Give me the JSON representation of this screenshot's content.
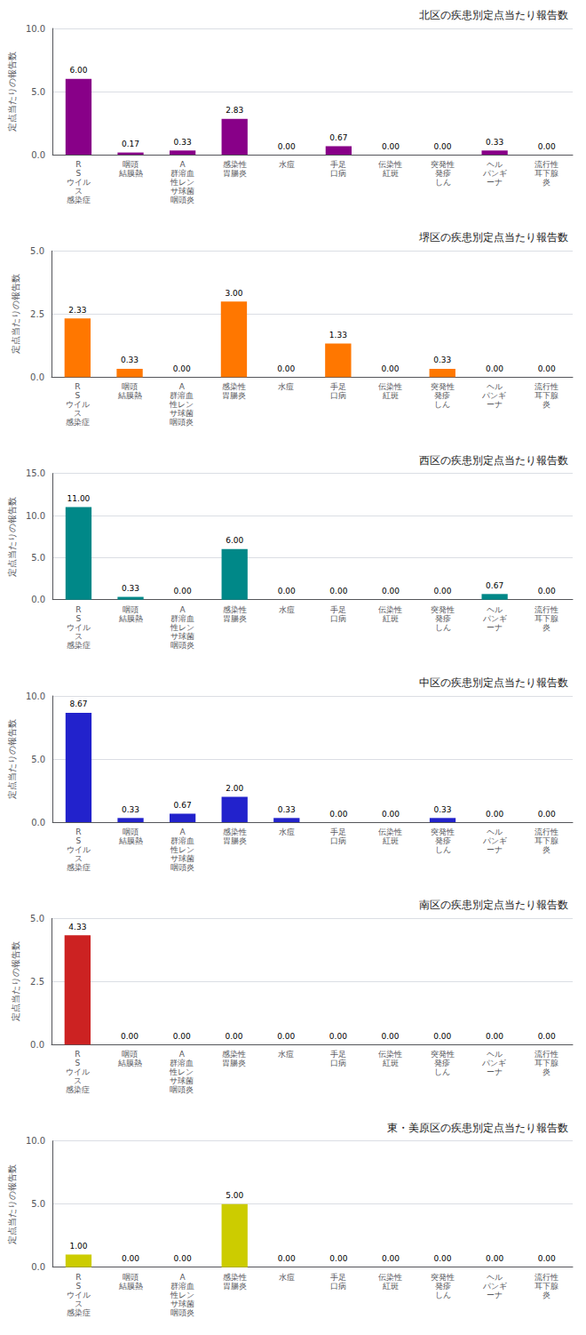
{
  "chart_data": [
    {
      "type": "bar",
      "title": "北区の疾患別定点当たり報告数",
      "categories": [
        "R\nS\nウイル\nス\n感染症",
        "咽頭\n結膜熱",
        "A\n群溶血\n性レン\nサ球菌\n咽頭炎",
        "感染性\n胃腸炎",
        "水痘",
        "手足\n口病",
        "伝染性\n紅斑",
        "突発性\n発疹\nしん",
        "ヘル\nパンギ\nーナ",
        "流行性\n耳下腺\n炎"
      ],
      "values": [
        6.0,
        0.17,
        0.33,
        2.83,
        0.0,
        0.67,
        0.0,
        0.0,
        0.33,
        0.0
      ],
      "value_labels": [
        "6.00",
        "0.17",
        "0.33",
        "2.83",
        "0.00",
        "0.67",
        "0.00",
        "0.00",
        "0.33",
        "0.00"
      ],
      "data_labels": true,
      "color": "#880088",
      "ylabel": "定点当たりの報告数",
      "ylim": [
        0,
        10.0
      ],
      "yticks": [
        {
          "value": 0,
          "label": "0.0"
        },
        {
          "value": 5,
          "label": "5.0"
        },
        {
          "value": 10,
          "label": "10.0"
        }
      ],
      "grid": true
    },
    {
      "type": "bar",
      "title": "堺区の疾患別定点当たり報告数",
      "categories": [
        "R\nS\nウイル\nス\n感染症",
        "咽頭\n結膜熱",
        "A\n群溶血\n性レン\nサ球菌\n咽頭炎",
        "感染性\n胃腸炎",
        "水痘",
        "手足\n口病",
        "伝染性\n紅斑",
        "突発性\n発疹\nしん",
        "ヘル\nパンギ\nーナ",
        "流行性\n耳下腺\n炎"
      ],
      "values": [
        2.33,
        0.33,
        0.0,
        3.0,
        0.0,
        1.33,
        0.0,
        0.33,
        0.0,
        0.0
      ],
      "value_labels": [
        "2.33",
        "0.33",
        "0.00",
        "3.00",
        "0.00",
        "1.33",
        "0.00",
        "0.33",
        "0.00",
        "0.00"
      ],
      "data_labels": true,
      "color": "#FF7700",
      "ylabel": "定点当たりの報告数",
      "ylim": [
        0,
        5.0
      ],
      "yticks": [
        {
          "value": 0,
          "label": "0.0"
        },
        2.5,
        {
          "value": 5,
          "label": "5.0"
        }
      ],
      "grid": true
    },
    {
      "type": "bar",
      "title": "西区の疾患別定点当たり報告数",
      "categories": [
        "R\nS\nウイル\nス\n感染症",
        "咽頭\n結膜熱",
        "A\n群溶血\n性レン\nサ球菌\n咽頭炎",
        "感染性\n胃腸炎",
        "水痘",
        "手足\n口病",
        "伝染性\n紅斑",
        "突発性\n発疹\nしん",
        "ヘル\nパンギ\nーナ",
        "流行性\n耳下腺\n炎"
      ],
      "values": [
        11.0,
        0.33,
        0.0,
        6.0,
        0.0,
        0.0,
        0.0,
        0.0,
        0.67,
        0.0
      ],
      "value_labels": [
        "11.00",
        "0.33",
        "0.00",
        "6.00",
        "0.00",
        "0.00",
        "0.00",
        "0.00",
        "0.67",
        "0.00"
      ],
      "data_labels": true,
      "color": "#008888",
      "ylabel": "定点当たりの報告数",
      "ylim": [
        0,
        15.0
      ],
      "yticks": [
        {
          "value": 0,
          "label": "0.0"
        },
        {
          "value": 5,
          "label": "5.0"
        },
        {
          "value": 10,
          "label": "10.0"
        },
        {
          "value": 15,
          "label": "15.0"
        }
      ],
      "grid": true
    },
    {
      "type": "bar",
      "title": "中区の疾患別定点当たり報告数",
      "categories": [
        "R\nS\nウイル\nス\n感染症",
        "咽頭\n結膜熱",
        "A\n群溶血\n性レン\nサ球菌\n咽頭炎",
        "感染性\n胃腸炎",
        "水痘",
        "手足\n口病",
        "伝染性\n紅斑",
        "突発性\n発疹\nしん",
        "ヘル\nパンギ\nーナ",
        "流行性\n耳下腺\n炎"
      ],
      "values": [
        8.67,
        0.33,
        0.67,
        2.0,
        0.33,
        0.0,
        0.0,
        0.33,
        0.0,
        0.0
      ],
      "value_labels": [
        "8.67",
        "0.33",
        "0.67",
        "2.00",
        "0.33",
        "0.00",
        "0.00",
        "0.33",
        "0.00",
        "0.00"
      ],
      "data_labels": true,
      "color": "#2222CC",
      "ylabel": "定点当たりの報告数",
      "ylim": [
        0,
        10.0
      ],
      "yticks": [
        {
          "value": 0,
          "label": "0.0"
        },
        {
          "value": 5,
          "label": "5.0"
        },
        {
          "value": 10,
          "label": "10.0"
        }
      ],
      "grid": true
    },
    {
      "type": "bar",
      "title": "南区の疾患別定点当たり報告数",
      "categories": [
        "R\nS\nウイル\nス\n感染症",
        "咽頭\n結膜熱",
        "A\n群溶血\n性レン\nサ球菌\n咽頭炎",
        "感染性\n胃腸炎",
        "水痘",
        "手足\n口病",
        "伝染性\n紅斑",
        "突発性\n発疹\nしん",
        "ヘル\nパンギ\nーナ",
        "流行性\n耳下腺\n炎"
      ],
      "values": [
        4.33,
        0.0,
        0.0,
        0.0,
        0.0,
        0.0,
        0.0,
        0.0,
        0.0,
        0.0
      ],
      "value_labels": [
        "4.33",
        "0.00",
        "0.00",
        "0.00",
        "0.00",
        "0.00",
        "0.00",
        "0.00",
        "0.00",
        "0.00"
      ],
      "data_labels": true,
      "color": "#CC2222",
      "ylabel": "定点当たりの報告数",
      "ylim": [
        0,
        5.0
      ],
      "yticks": [
        {
          "value": 0,
          "label": "0.0"
        },
        2.5,
        {
          "value": 5,
          "label": "5.0"
        }
      ],
      "grid": true
    },
    {
      "type": "bar",
      "title": "東・美原区の疾患別定点当たり報告数",
      "categories": [
        "R\nS\nウイル\nス\n感染症",
        "咽頭\n結膜熱",
        "A\n群溶血\n性レン\nサ球菌\n咽頭炎",
        "感染性\n胃腸炎",
        "水痘",
        "手足\n口病",
        "伝染性\n紅斑",
        "突発性\n発疹\nしん",
        "ヘル\nパンギ\nーナ",
        "流行性\n耳下腺\n炎"
      ],
      "values": [
        1.0,
        0.0,
        0.0,
        5.0,
        0.0,
        0.0,
        0.0,
        0.0,
        0.0,
        0.0
      ],
      "value_labels": [
        "1.00",
        "0.00",
        "0.00",
        "5.00",
        "0.00",
        "0.00",
        "0.00",
        "0.00",
        "0.00",
        "0.00"
      ],
      "data_labels": true,
      "color": "#CCCC00",
      "ylabel": "定点当たりの報告数",
      "ylim": [
        0,
        10.0
      ],
      "yticks": [
        {
          "value": 0,
          "label": "0.0"
        },
        {
          "value": 5,
          "label": "5.0"
        },
        {
          "value": 10,
          "label": "10.0"
        }
      ],
      "grid": true
    }
  ]
}
